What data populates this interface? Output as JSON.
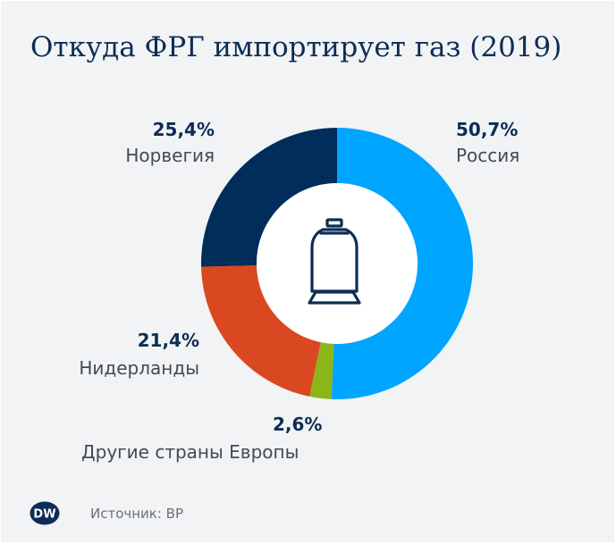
{
  "title": "Откуда ФРГ импортирует газ (2019)",
  "source": "Источник: BP",
  "logo_text": "DW",
  "colors": {
    "russia": "#00a5ff",
    "other": "#8cb51a",
    "netherlands": "#d94821",
    "norway": "#002d5a",
    "title": "#0d2d54"
  },
  "icon": "gas-cylinder-icon",
  "chart_data": {
    "type": "pie",
    "title": "Откуда ФРГ импортирует газ (2019)",
    "unit": "%",
    "categories": [
      "Россия",
      "Другие страны Европы",
      "Нидерланды",
      "Норвегия"
    ],
    "values": [
      50.7,
      2.6,
      21.4,
      25.4
    ],
    "labels": [
      "50,7%",
      "2,6%",
      "21,4%",
      "25,4%"
    ],
    "donut": true,
    "start_angle_deg": 0,
    "direction": "clockwise"
  }
}
